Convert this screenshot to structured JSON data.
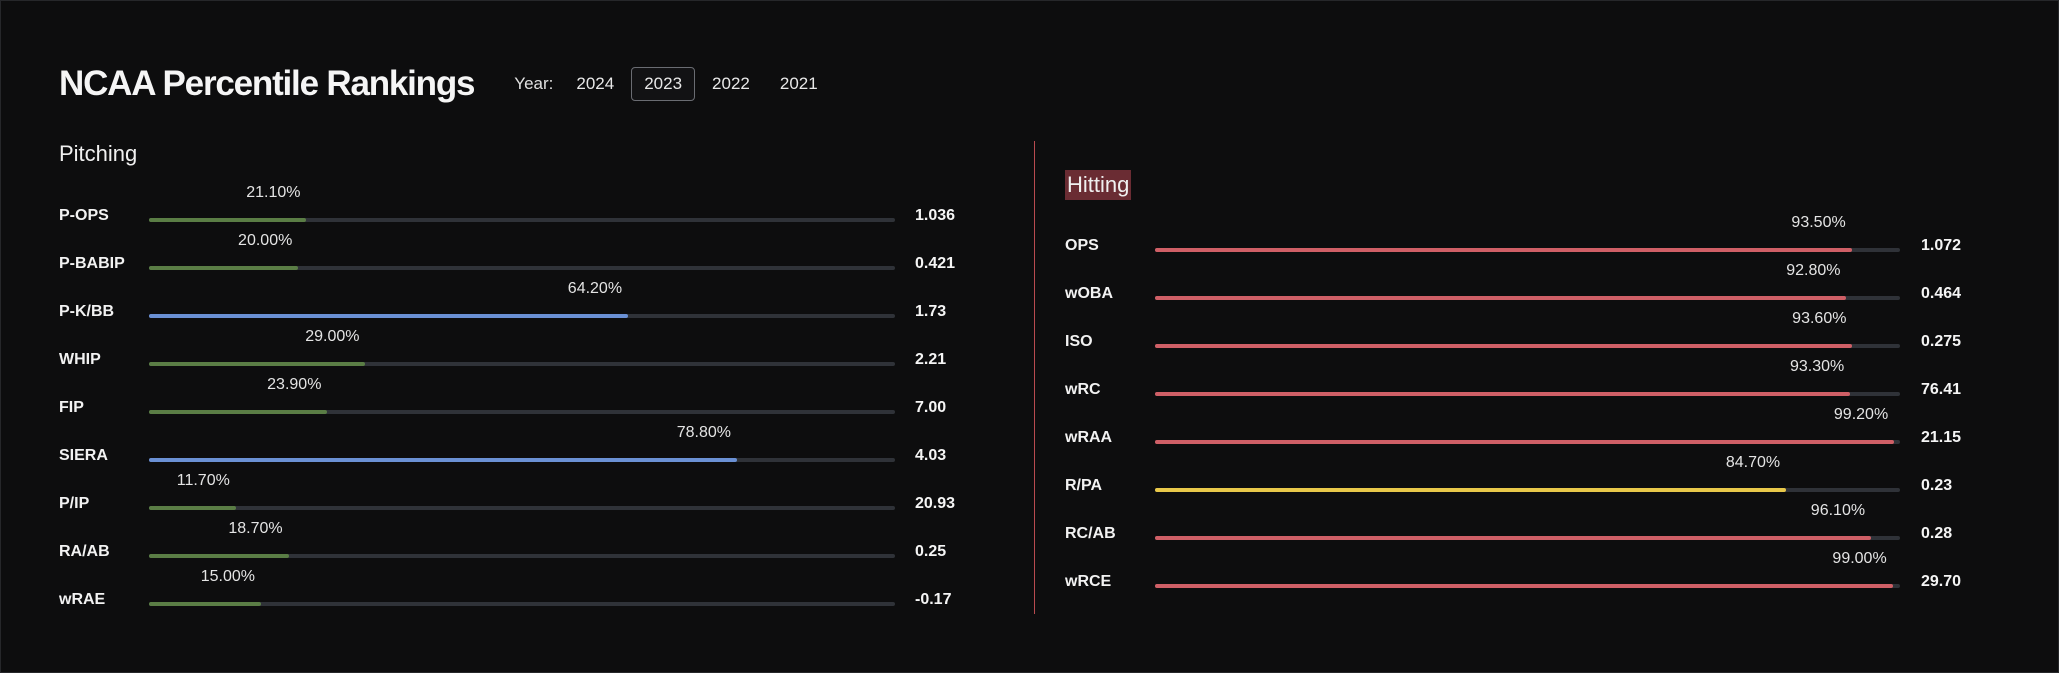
{
  "header": {
    "title": "NCAA Percentile Rankings",
    "year_label": "Year:",
    "years": [
      "2024",
      "2023",
      "2022",
      "2021"
    ],
    "selected_year": "2023"
  },
  "pitching": {
    "title": "Pitching",
    "rows": [
      {
        "label": "P-OPS",
        "percentile": 21.1,
        "pct_text": "21.10%",
        "value": "1.036",
        "color": "#5a7d45"
      },
      {
        "label": "P-BABIP",
        "percentile": 20.0,
        "pct_text": "20.00%",
        "value": "0.421",
        "color": "#5a7d45"
      },
      {
        "label": "P-K/BB",
        "percentile": 64.2,
        "pct_text": "64.20%",
        "value": "1.73",
        "color": "#6a90d4"
      },
      {
        "label": "WHIP",
        "percentile": 29.0,
        "pct_text": "29.00%",
        "value": "2.21",
        "color": "#5a7d45"
      },
      {
        "label": "FIP",
        "percentile": 23.9,
        "pct_text": "23.90%",
        "value": "7.00",
        "color": "#5a7d45"
      },
      {
        "label": "SIERA",
        "percentile": 78.8,
        "pct_text": "78.80%",
        "value": "4.03",
        "color": "#6a90d4"
      },
      {
        "label": "P/IP",
        "percentile": 11.7,
        "pct_text": "11.70%",
        "value": "20.93",
        "color": "#5a7d45"
      },
      {
        "label": "RA/AB",
        "percentile": 18.7,
        "pct_text": "18.70%",
        "value": "0.25",
        "color": "#5a7d45"
      },
      {
        "label": "wRAE",
        "percentile": 15.0,
        "pct_text": "15.00%",
        "value": "-0.17",
        "color": "#5a7d45"
      }
    ]
  },
  "hitting": {
    "title": "Hitting",
    "rows": [
      {
        "label": "OPS",
        "percentile": 93.5,
        "pct_text": "93.50%",
        "value": "1.072",
        "color": "#cf5f66"
      },
      {
        "label": "wOBA",
        "percentile": 92.8,
        "pct_text": "92.80%",
        "value": "0.464",
        "color": "#cf5f66"
      },
      {
        "label": "ISO",
        "percentile": 93.6,
        "pct_text": "93.60%",
        "value": "0.275",
        "color": "#cf5f66"
      },
      {
        "label": "wRC",
        "percentile": 93.3,
        "pct_text": "93.30%",
        "value": "76.41",
        "color": "#cf5f66"
      },
      {
        "label": "wRAA",
        "percentile": 99.2,
        "pct_text": "99.20%",
        "value": "21.15",
        "color": "#cf5f66"
      },
      {
        "label": "R/PA",
        "percentile": 84.7,
        "pct_text": "84.70%",
        "value": "0.23",
        "color": "#e8c84a"
      },
      {
        "label": "RC/AB",
        "percentile": 96.1,
        "pct_text": "96.10%",
        "value": "0.28",
        "color": "#cf5f66"
      },
      {
        "label": "wRCE",
        "percentile": 99.0,
        "pct_text": "99.00%",
        "value": "29.70",
        "color": "#cf5f66"
      }
    ]
  }
}
